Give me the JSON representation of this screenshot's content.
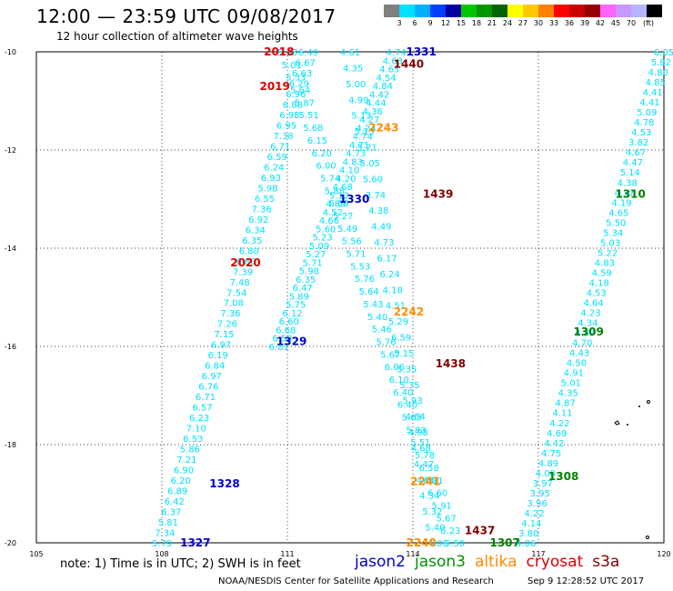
{
  "header": {
    "title": "12:00 — 23:59 UTC 09/08/2017",
    "subtitle": "12 hour collection of altimeter wave heights"
  },
  "colorbar": {
    "colors": [
      "#808080",
      "#00e0ff",
      "#00b0ff",
      "#0040ff",
      "#0000a0",
      "#00c800",
      "#009600",
      "#006400",
      "#ffff00",
      "#ffc800",
      "#ff8000",
      "#ff0000",
      "#c80000",
      "#960000",
      "#ff64ff",
      "#c896ff",
      "#b4b4ff",
      "#000000"
    ],
    "labels": [
      "3",
      "6",
      "9",
      "12",
      "15",
      "18",
      "21",
      "24",
      "27",
      "30",
      "33",
      "36",
      "39",
      "42",
      "45",
      "70",
      "(ft)"
    ]
  },
  "chart_data": {
    "type": "map",
    "lon_range": [
      105,
      120
    ],
    "lat_range": [
      -20,
      -10
    ],
    "x_ticks": [
      "105",
      "108",
      "111",
      "114",
      "117",
      "120"
    ],
    "y_ticks": [
      "-10",
      "-12",
      "-14",
      "-16",
      "-18",
      "-20"
    ],
    "grid": "dotted",
    "tracks": [
      {
        "color": "#00e0ff",
        "start": [
          111.5,
          -10.0
        ],
        "end": [
          108.0,
          -20.0
        ],
        "values": [
          "6.49",
          "6.67",
          "6.63",
          "6.29",
          "6.96",
          "6.88",
          "6.98",
          "6.95",
          "7.38",
          "6.71",
          "6.59",
          "6.24",
          "6.93",
          "5.98",
          "6.55",
          "7.36",
          "6.92",
          "6.34",
          "6.35",
          "6.80",
          "6.80",
          "7.39",
          "7.48",
          "7.54",
          "7.08",
          "7.36",
          "7.26",
          "7.15",
          "6.97",
          "6.19",
          "6.84",
          "6.97",
          "6.76",
          "6.71",
          "6.57",
          "6.23",
          "7.10",
          "6.53",
          "5.86",
          "7.21",
          "6.90",
          "6.20",
          "6.89",
          "6.42",
          "6.37",
          "5.81",
          "7.34",
          "5.79"
        ]
      },
      {
        "color": "#00e0ff",
        "start": [
          113.6,
          -10.0
        ],
        "end": [
          110.8,
          -16.0
        ],
        "values": [
          "4.74",
          "4.63",
          "4.65",
          "4.54",
          "4.84",
          "4.42",
          "4.44",
          "4.36",
          "4.27",
          "4.24",
          "4.74",
          "4.71",
          "4.73",
          "4.83",
          "4.10",
          "4.20",
          "4.68",
          "5.12",
          "4.89",
          "4.52",
          "4.66",
          "5.60",
          "5.23",
          "5.09",
          "5.27",
          "5.71",
          "5.98",
          "6.35",
          "6.47",
          "5.89",
          "5.75",
          "6.12",
          "6.60",
          "6.68",
          "6.53",
          "6.81"
        ]
      },
      {
        "color": "#00e0ff",
        "start": [
          111.0,
          -10.0
        ],
        "end": [
          115.0,
          -20.0
        ],
        "values": [
          "5.38",
          "5.01",
          "5.33",
          "5.64",
          "5.87",
          "5.51",
          "5.68",
          "6.15",
          "6.20",
          "6.00",
          "5.74",
          "5.88",
          "6.09",
          "5.27",
          "5.49",
          "5.56",
          "5.71",
          "5.53",
          "5.76",
          "5.64",
          "5.43",
          "5.40",
          "5.46",
          "5.76",
          "5.67",
          "6.06",
          "6.10",
          "6.40",
          "6.40",
          "5.63",
          "5.83",
          "5.51",
          "5.78",
          "6.58",
          "6.81",
          "6.60",
          "5.91",
          "5.67",
          "6.23",
          "5.50"
        ]
      },
      {
        "color": "#00e0ff",
        "start": [
          112.5,
          -10.0
        ],
        "end": [
          114.6,
          -20.0
        ],
        "values": [
          "4.61",
          "4.35",
          "5.00",
          "4.99",
          "5.13",
          "5.13",
          "5.21",
          "5.05",
          "5.60",
          "3.74",
          "4.38",
          "4.49",
          "4.73",
          "6.17",
          "6.24",
          "4.18",
          "4.51",
          "5.29",
          "6.59",
          "5.15",
          "5.35",
          "5.35",
          "5.93",
          "4.64",
          "4.98",
          "4.68",
          "4.47",
          "4.80",
          "4.34",
          "5.32",
          "5.40",
          "4.06"
        ]
      },
      {
        "color": "#00e0ff",
        "start": [
          120.0,
          -10.0
        ],
        "end": [
          116.7,
          -20.0
        ],
        "values": [
          "6.05",
          "5.82",
          "4.80",
          "4.85",
          "4.41",
          "4.41",
          "5.09",
          "4.78",
          "4.53",
          "3.82",
          "4.67",
          "4.47",
          "5.14",
          "4.38",
          "4.37",
          "4.19",
          "4.65",
          "5.50",
          "5.34",
          "5.03",
          "5.22",
          "4.83",
          "4.59",
          "4.18",
          "4.53",
          "4.64",
          "4.23",
          "4.34",
          "4.89",
          "4.70",
          "4.43",
          "4.50",
          "4.91",
          "5.01",
          "4.35",
          "4.87",
          "4.11",
          "4.22",
          "4.69",
          "4.42",
          "4.75",
          "4.89",
          "4.08",
          "3.97",
          "3.95",
          "3.96",
          "4.22",
          "4.14",
          "3.80",
          "4.06"
        ]
      }
    ],
    "time_labels": [
      {
        "text": "2018",
        "color": "#dd0000",
        "lon": 110.8,
        "lat": -10.0
      },
      {
        "text": "1331",
        "color": "#0000cc",
        "lon": 114.2,
        "lat": -10.0
      },
      {
        "text": "1440",
        "color": "#800000",
        "lon": 113.9,
        "lat": -10.25
      },
      {
        "text": "2019",
        "color": "#dd0000",
        "lon": 110.7,
        "lat": -10.7
      },
      {
        "text": "2243",
        "color": "#ff8c00",
        "lon": 113.3,
        "lat": -11.55
      },
      {
        "text": "1439",
        "color": "#800000",
        "lon": 114.6,
        "lat": -12.9
      },
      {
        "text": "1330",
        "color": "#0000cc",
        "lon": 112.6,
        "lat": -13.0
      },
      {
        "text": "1310",
        "color": "#008000",
        "lon": 119.2,
        "lat": -12.9
      },
      {
        "text": "2020",
        "color": "#dd0000",
        "lon": 110.0,
        "lat": -14.3
      },
      {
        "text": "2242",
        "color": "#ff8c00",
        "lon": 113.9,
        "lat": -15.3
      },
      {
        "text": "1309",
        "color": "#008000",
        "lon": 118.2,
        "lat": -15.7
      },
      {
        "text": "1329",
        "color": "#0000cc",
        "lon": 111.1,
        "lat": -15.9
      },
      {
        "text": "1438",
        "color": "#800000",
        "lon": 114.9,
        "lat": -16.35
      },
      {
        "text": "1328",
        "color": "#0000cc",
        "lon": 109.5,
        "lat": -18.8
      },
      {
        "text": "2241",
        "color": "#ff8c00",
        "lon": 114.3,
        "lat": -18.75
      },
      {
        "text": "1308",
        "color": "#008000",
        "lon": 117.6,
        "lat": -18.65
      },
      {
        "text": "1437",
        "color": "#800000",
        "lon": 115.6,
        "lat": -19.75
      },
      {
        "text": "2240",
        "color": "#ff8c00",
        "lon": 114.2,
        "lat": -20.0
      },
      {
        "text": "1307",
        "color": "#008000",
        "lon": 116.2,
        "lat": -20.0
      },
      {
        "text": "1327",
        "color": "#0000cc",
        "lon": 108.8,
        "lat": -20.0
      }
    ]
  },
  "footer": {
    "note": "note: 1) Time is in UTC; 2) SWH is in feet",
    "legend": [
      {
        "name": "jason2",
        "color": "#0000cc"
      },
      {
        "name": "jason3",
        "color": "#009000"
      },
      {
        "name": "altika",
        "color": "#ff8c00"
      },
      {
        "name": "cryosat",
        "color": "#dd0000"
      },
      {
        "name": "s3a",
        "color": "#800000"
      }
    ],
    "credit": "NOAA/NESDIS Center for Satellite Applications and Research",
    "timestamp": "Sep  9 12:28:52 UTC 2017"
  }
}
